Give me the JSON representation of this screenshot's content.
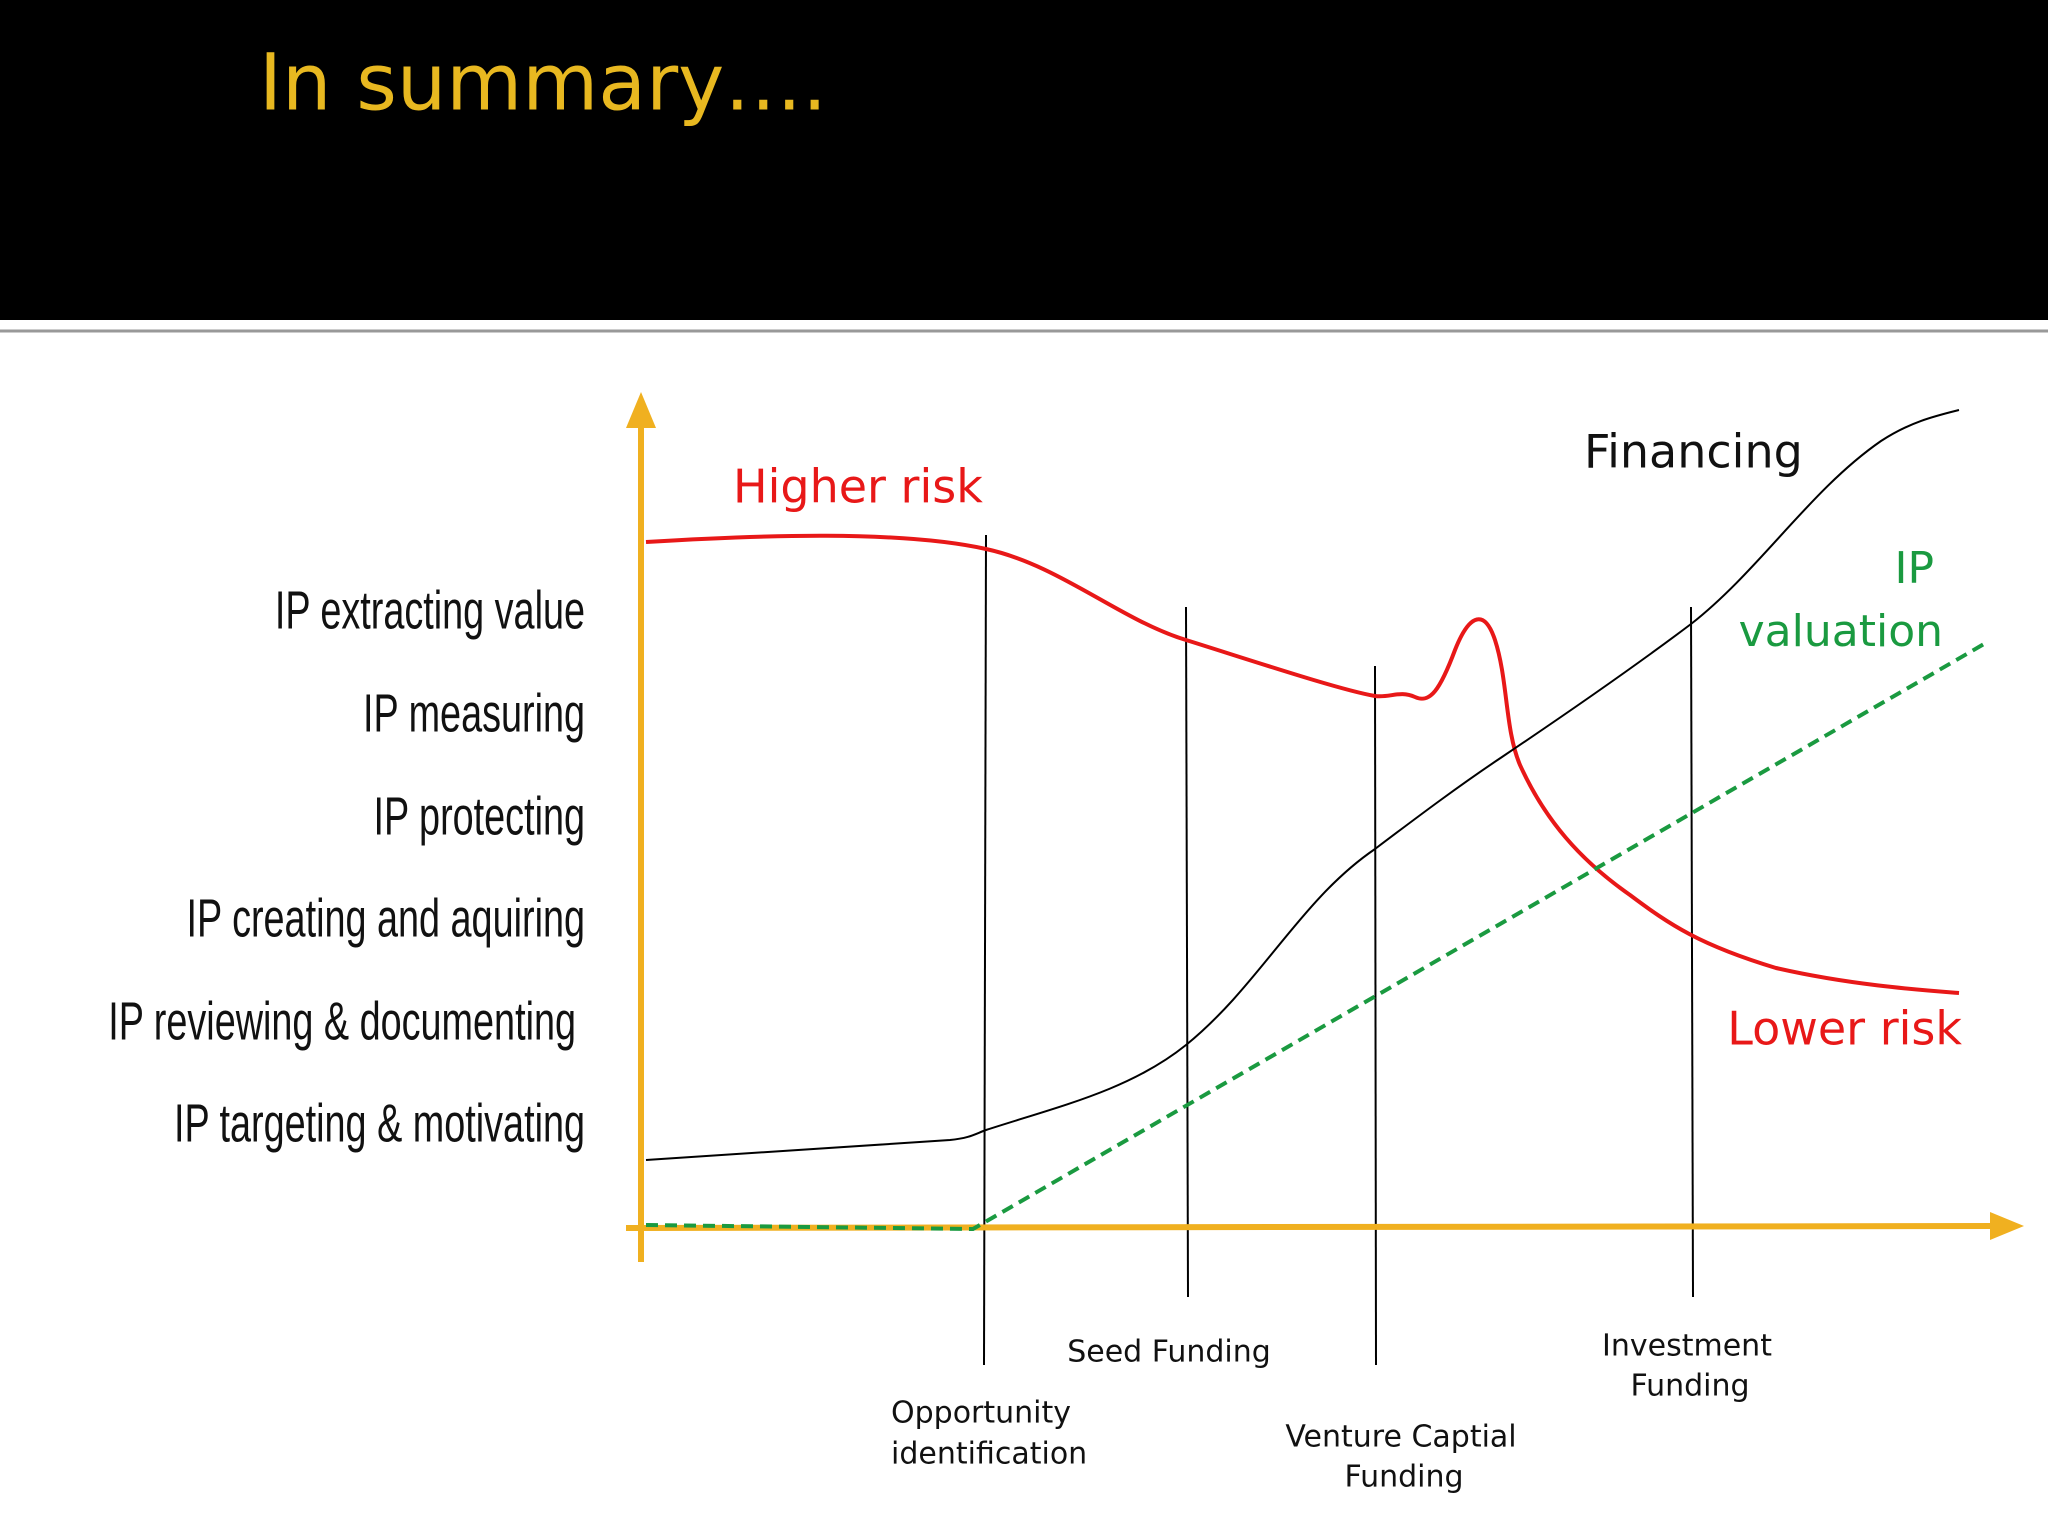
{
  "header": {
    "title": "In summary…."
  },
  "stages": [
    {
      "label": "IP extracting value"
    },
    {
      "label": "IP measuring"
    },
    {
      "label": "IP protecting"
    },
    {
      "label": "IP creating and aquiring"
    },
    {
      "label": "IP reviewing & documenting"
    },
    {
      "label": "IP targeting & motivating"
    }
  ],
  "annotations": {
    "higher_risk": "Higher risk",
    "lower_risk": "Lower risk",
    "financing": "Financing",
    "ip_valuation": [
      "IP",
      "valuation"
    ]
  },
  "milestones": [
    {
      "lines": [
        "Opportunity",
        "identification"
      ]
    },
    {
      "lines": [
        "Seed Funding"
      ]
    },
    {
      "lines": [
        "Venture Captial",
        "Funding"
      ]
    },
    {
      "lines": [
        "Investment",
        "Funding"
      ]
    }
  ]
}
